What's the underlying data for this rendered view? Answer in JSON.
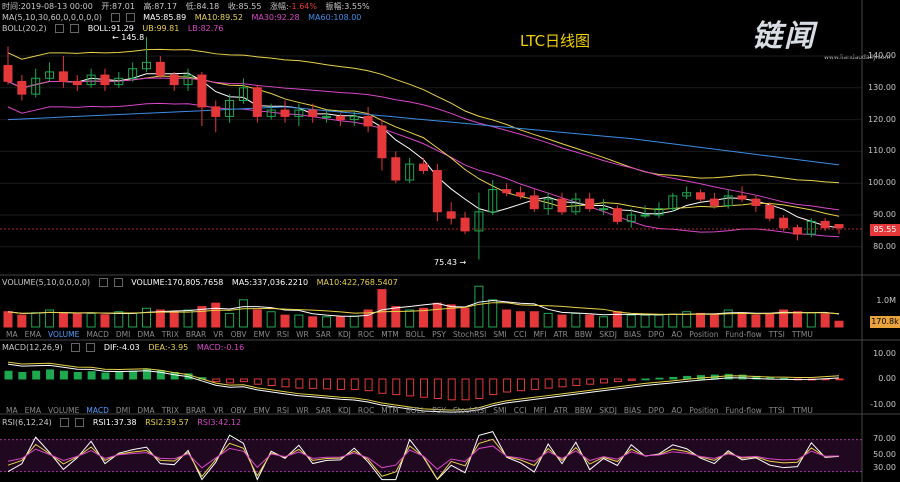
{
  "header": {
    "time_label": "时间:",
    "time": "2019-08-13 00:00",
    "open_label": "开:",
    "open": "87.01",
    "high_label": "高:",
    "high": "87.17",
    "low_label": "低:",
    "low": "84.18",
    "close_label": "收:",
    "close": "85.55",
    "change_label": "涨幅:",
    "change": "-1.64%",
    "amp_label": "振幅:",
    "amp": "3.55%"
  },
  "ma_line": {
    "params": "MA(5,10,30,60,0,0,0,0,0)",
    "ma5": "MA5:85.89",
    "ma10": "MA10:89.52",
    "ma30": "MA30:92.28",
    "ma60": "MA60:108.00"
  },
  "boll_line": {
    "params": "BOLL(20,2)",
    "boll": "BOLL:91.29",
    "ub": "UB:99.81",
    "lb": "LB:82.76"
  },
  "chart_title": "LTC日线图",
  "logo": {
    "text": "链闻",
    "url": "www.liandaodaily.com"
  },
  "price_axis": [
    "140.00",
    "130.00",
    "120.00",
    "110.00",
    "100.00",
    "90.00",
    "80.00"
  ],
  "price_tag": "85.55",
  "annotations": {
    "high": "145.8",
    "low": "75.43"
  },
  "volume_header": {
    "params": "VOLUME(5,10,0,0,0,0)",
    "volume": "VOLUME:170,805.7658",
    "ma5": "MA5:337,036.2210",
    "ma10": "MA10:422,768.5407"
  },
  "volume_axis": [
    "1.0M"
  ],
  "volume_tag": "170.8k",
  "indicator_tabs": [
    "MA",
    "EMA",
    "VOLUME",
    "MACD",
    "DMI",
    "DMA",
    "TRIX",
    "BRAR",
    "VR",
    "OBV",
    "EMV",
    "RSI",
    "WR",
    "SAR",
    "KDJ",
    "ROC",
    "MTM",
    "BOLL",
    "PSY",
    "StochRSI",
    "SMI",
    "CCI",
    "MFI",
    "ATR",
    "BBW",
    "SKDJ",
    "BIAS",
    "DPO",
    "AO",
    "Position",
    "Fund-flow",
    "TTSI",
    "TTMU"
  ],
  "macd_header": {
    "params": "MACD(12,26,9)",
    "dif": "DIF:-4.03",
    "dea": "DEA:-3.95",
    "macd": "MACD:-0.16"
  },
  "macd_axis": [
    "10.00",
    "0.00",
    "-10.00"
  ],
  "rsi_header": {
    "params": "RSI(6,12,24)",
    "rsi1": "RSI1:37.38",
    "rsi2": "RSI2:39.57",
    "rsi3": "RSI3:42.12"
  },
  "rsi_axis": [
    "70.00",
    "50.00",
    "30.00"
  ],
  "colors": {
    "up": "#1ea84f",
    "down": "#e5383b",
    "ma5": "#ffffff",
    "ma10": "#e8d24a",
    "ma30": "#d946c8",
    "ma60": "#3b8ee8"
  },
  "candles": [
    [
      137,
      132,
      143,
      131
    ],
    [
      132,
      128,
      134,
      126
    ],
    [
      128,
      133,
      136,
      127
    ],
    [
      133,
      135,
      138,
      132
    ],
    [
      135,
      132,
      140,
      130
    ],
    [
      132,
      131,
      134,
      129
    ],
    [
      131,
      134,
      136,
      130
    ],
    [
      134,
      131,
      136,
      129
    ],
    [
      131,
      133,
      135,
      130
    ],
    [
      133,
      136,
      138,
      132
    ],
    [
      136,
      138,
      146,
      135
    ],
    [
      138,
      134,
      140,
      133
    ],
    [
      134,
      131,
      135,
      129
    ],
    [
      131,
      134,
      136,
      129
    ],
    [
      134,
      124,
      135,
      118
    ],
    [
      124,
      121,
      126,
      116
    ],
    [
      121,
      126,
      128,
      119
    ],
    [
      126,
      130,
      133,
      125
    ],
    [
      130,
      121,
      131,
      119
    ],
    [
      121,
      123,
      125,
      120
    ],
    [
      123,
      121,
      126,
      119
    ],
    [
      121,
      123,
      125,
      118
    ],
    [
      123,
      121,
      125,
      119
    ],
    [
      121,
      121,
      123,
      119
    ],
    [
      121,
      120,
      122,
      118
    ],
    [
      120,
      121,
      123,
      118
    ],
    [
      121,
      118,
      124,
      116
    ],
    [
      118,
      108,
      120,
      104
    ],
    [
      108,
      101,
      110,
      100
    ],
    [
      101,
      106,
      108,
      100
    ],
    [
      106,
      104,
      108,
      103
    ],
    [
      104,
      91,
      106,
      88
    ],
    [
      91,
      89,
      94,
      87
    ],
    [
      89,
      85,
      91,
      84
    ],
    [
      85,
      91,
      97,
      76
    ],
    [
      91,
      98,
      101,
      90
    ],
    [
      98,
      97,
      100,
      96
    ],
    [
      97,
      96,
      99,
      95
    ],
    [
      96,
      92,
      98,
      91
    ],
    [
      92,
      95,
      97,
      90
    ],
    [
      95,
      91,
      97,
      90
    ],
    [
      91,
      95,
      97,
      90
    ],
    [
      95,
      92,
      97,
      91
    ],
    [
      92,
      92,
      95,
      90
    ],
    [
      92,
      88,
      93,
      87
    ],
    [
      88,
      90,
      92,
      86
    ],
    [
      90,
      90,
      93,
      89
    ],
    [
      90,
      92,
      94,
      89
    ],
    [
      92,
      96,
      97,
      91
    ],
    [
      96,
      97,
      99,
      95
    ],
    [
      97,
      95,
      98,
      94
    ],
    [
      95,
      93,
      97,
      92
    ],
    [
      93,
      96,
      98,
      92
    ],
    [
      96,
      95,
      99,
      94
    ],
    [
      95,
      93,
      96,
      91
    ],
    [
      93,
      89,
      94,
      88
    ],
    [
      89,
      86,
      90,
      85
    ],
    [
      86,
      84,
      87,
      82
    ],
    [
      84,
      88,
      89,
      83
    ],
    [
      88,
      86,
      89,
      85
    ],
    [
      87,
      86,
      87,
      84
    ]
  ],
  "volumes": [
    0.45,
    0.35,
    0.42,
    0.5,
    0.4,
    0.38,
    0.4,
    0.36,
    0.45,
    0.4,
    0.55,
    0.5,
    0.45,
    0.5,
    0.6,
    0.7,
    0.4,
    0.8,
    0.5,
    0.45,
    0.35,
    0.35,
    0.3,
    0.3,
    0.3,
    0.32,
    0.5,
    1.1,
    0.6,
    0.5,
    0.55,
    0.7,
    0.65,
    0.55,
    1.2,
    0.8,
    0.5,
    0.45,
    0.45,
    0.4,
    0.35,
    0.4,
    0.35,
    0.3,
    0.45,
    0.35,
    0.35,
    0.35,
    0.38,
    0.45,
    0.4,
    0.35,
    0.5,
    0.42,
    0.35,
    0.4,
    0.5,
    0.45,
    0.42,
    0.38,
    0.17
  ],
  "macd_hist": [
    3,
    2.5,
    3,
    3.5,
    3,
    2.5,
    2.8,
    2.3,
    2.5,
    3,
    3.5,
    3.2,
    2.5,
    2,
    0.5,
    -1,
    -1.5,
    -1,
    -2,
    -2.5,
    -3,
    -3.5,
    -3.6,
    -3.8,
    -4,
    -4,
    -4.5,
    -5.5,
    -6,
    -6.5,
    -7,
    -7.5,
    -8,
    -8,
    -7.5,
    -6,
    -5,
    -4.5,
    -4,
    -3.5,
    -3,
    -2.5,
    -2,
    -1.5,
    -1,
    -0.5,
    0,
    0.3,
    0.6,
    1,
    1.3,
    1.5,
    1.8,
    1.5,
    1,
    0.5,
    0.2,
    -0.2,
    -0.4,
    -0.3,
    -0.16
  ]
}
